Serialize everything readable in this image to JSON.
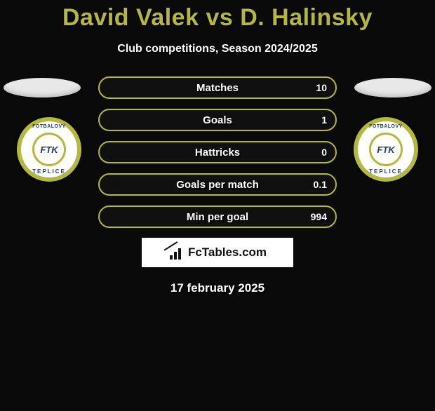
{
  "title": "David Valek vs D. Halinsky",
  "subtitle": "Club competitions, Season 2024/2025",
  "colors": {
    "accent": "#b5b83f",
    "background": "#0a0a0a",
    "text": "#ffffff",
    "badge_blue": "#1a3a7a"
  },
  "club": {
    "top_text": "FOTBALOVÝ",
    "bottom_text": "TEPLICE",
    "monogram": "FTK"
  },
  "stats": [
    {
      "label": "Matches",
      "right_value": "10"
    },
    {
      "label": "Goals",
      "right_value": "1"
    },
    {
      "label": "Hattricks",
      "right_value": "0"
    },
    {
      "label": "Goals per match",
      "right_value": "0.1"
    },
    {
      "label": "Min per goal",
      "right_value": "994"
    }
  ],
  "branding": "FcTables.com",
  "date": "17 february 2025"
}
